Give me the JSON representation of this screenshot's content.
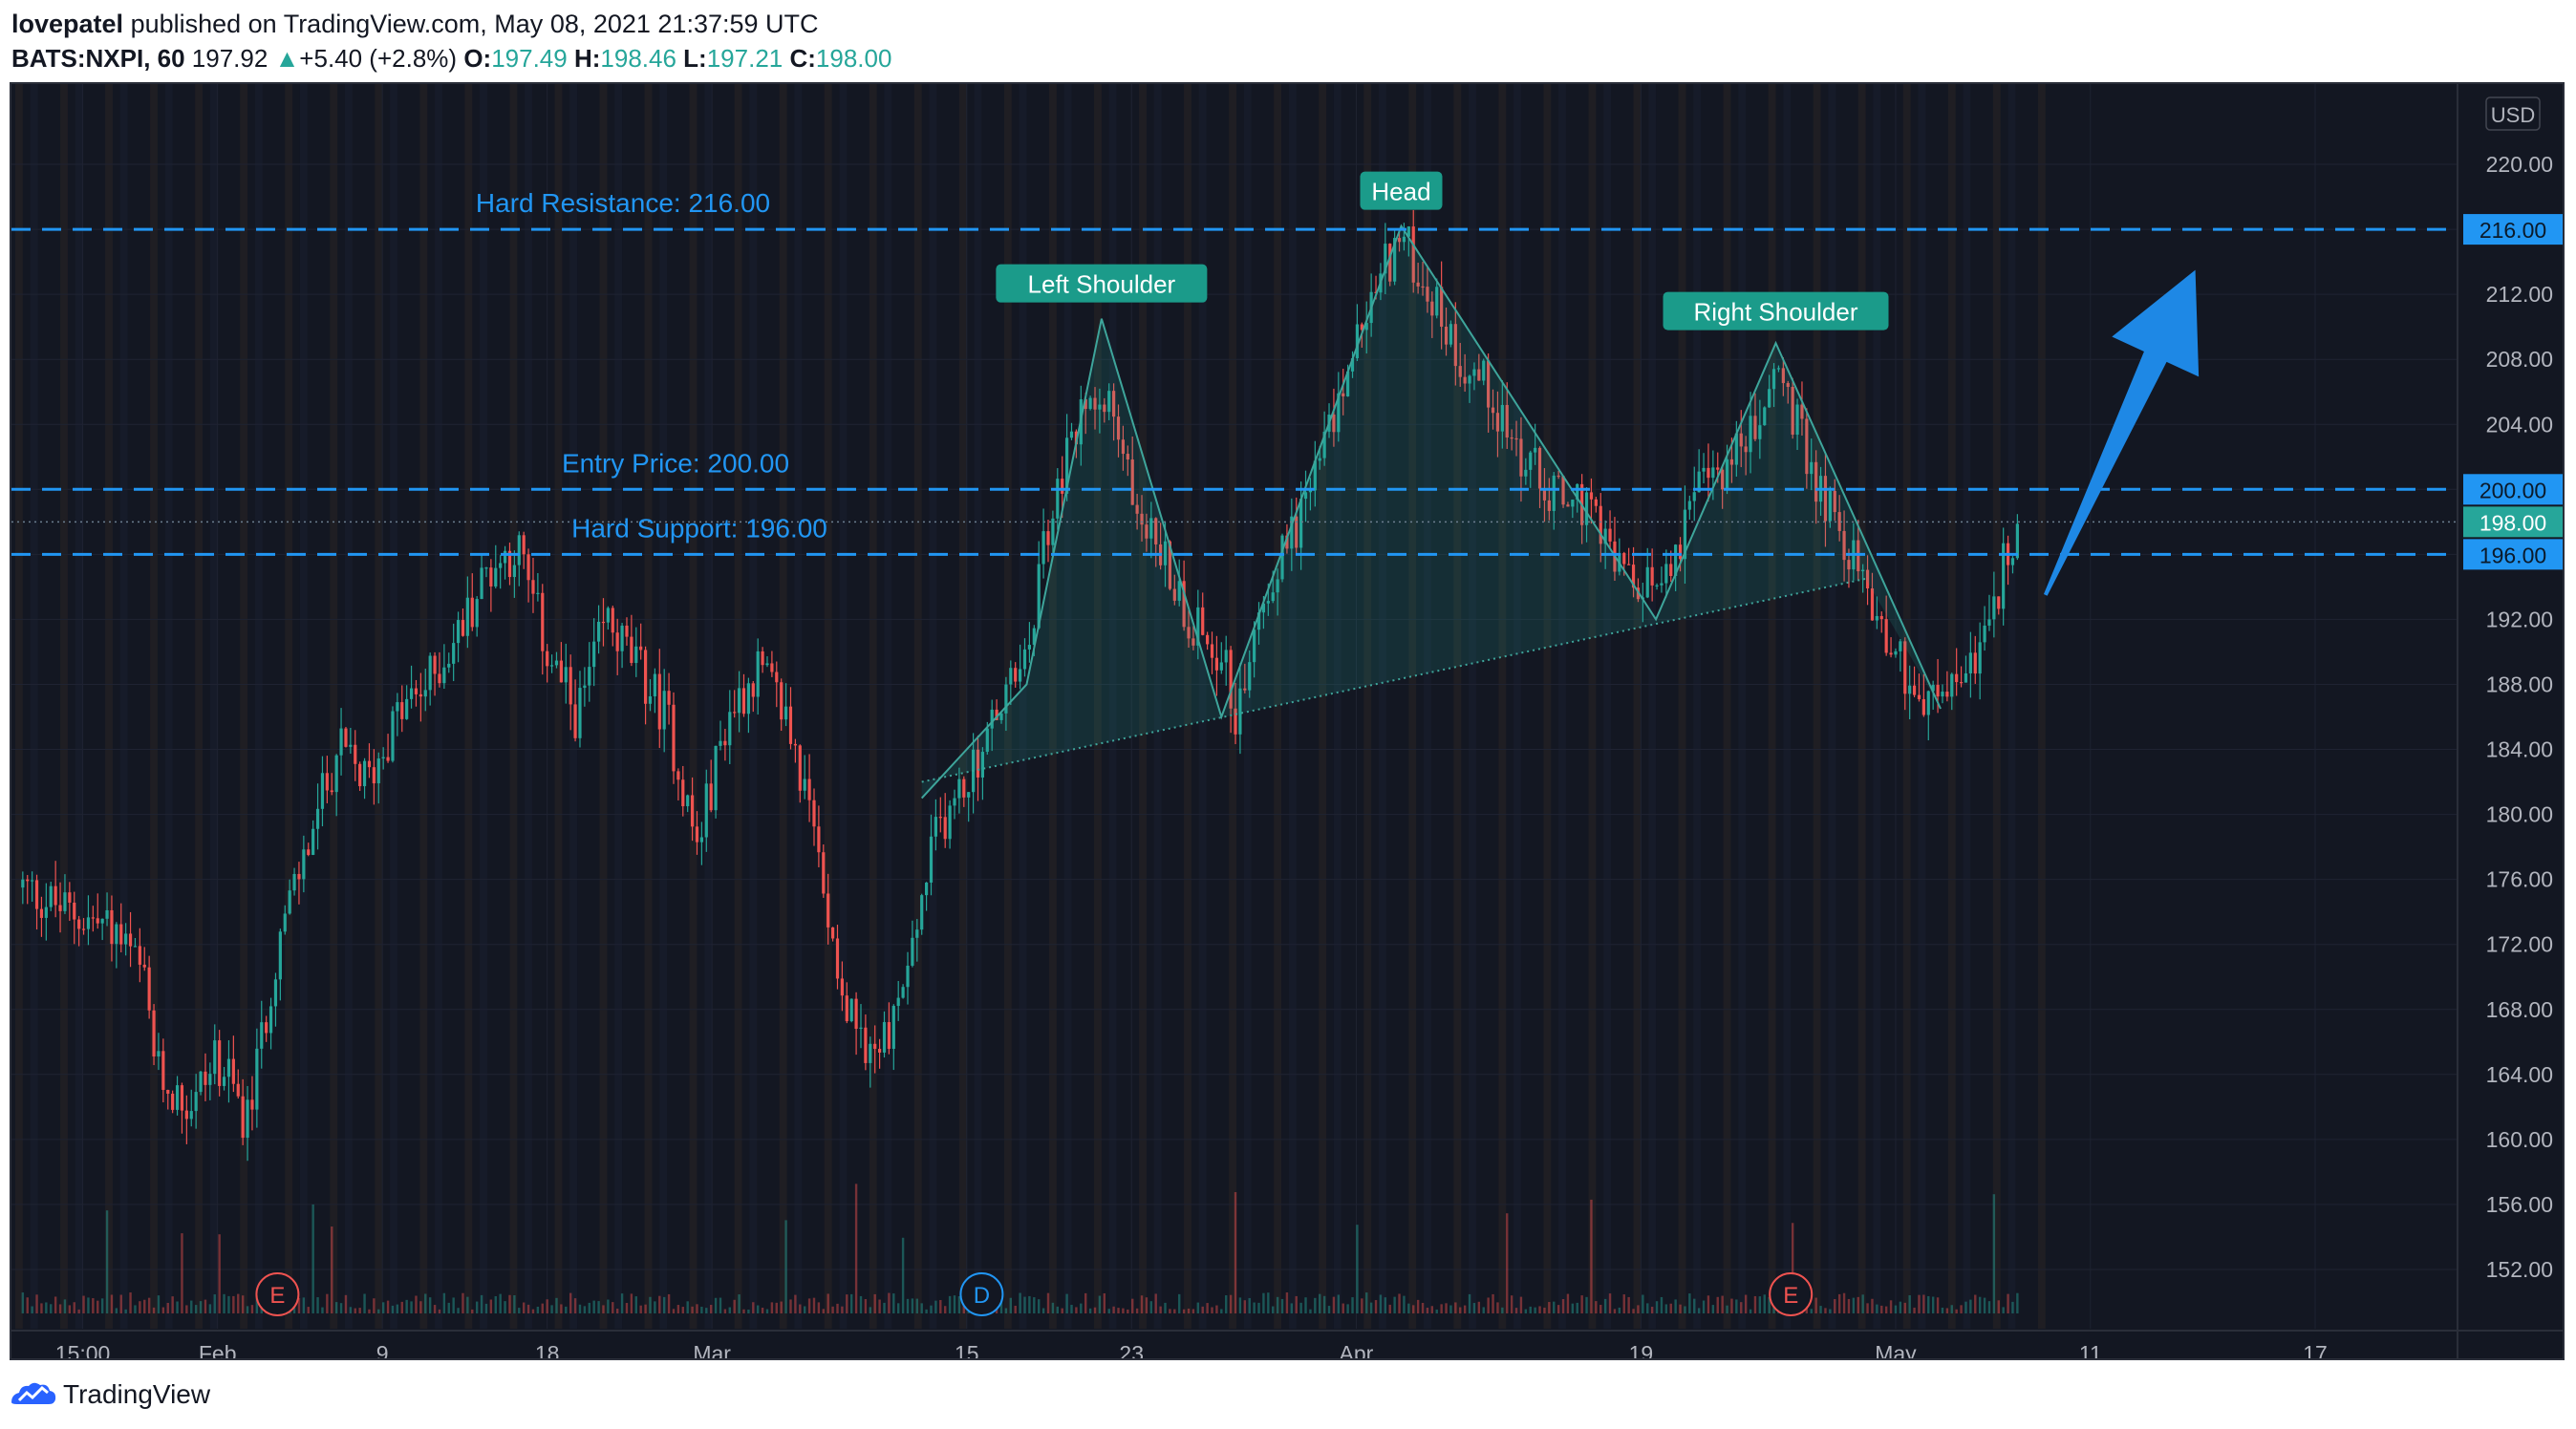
{
  "header": {
    "author": "lovepatel",
    "published_text": "published on TradingView.com, May 08, 2021 21:37:59 UTC",
    "symbol": "BATS:NXPI, 60",
    "last": "197.92",
    "change_arrow": "▲",
    "change": "+5.40 (+2.8%)",
    "o_label": "O:",
    "o_val": "197.49",
    "h_label": "H:",
    "h_val": "198.46",
    "l_label": "L:",
    "l_val": "197.21",
    "c_label": "C:",
    "c_val": "198.00"
  },
  "footer": {
    "brand": "TradingView"
  },
  "colors": {
    "background": "#131722",
    "up": "#26a69a",
    "down": "#ef5350",
    "accent_blue": "#2196f3",
    "pattern_line": "#3ea59b",
    "label_teal": "#1b9b8a",
    "grid": "#1f2332"
  },
  "chart_data": {
    "type": "candlestick",
    "currency": "USD",
    "ylim": [
      150,
      222
    ],
    "y_ticks": [
      "152.00",
      "156.00",
      "160.00",
      "164.00",
      "168.00",
      "172.00",
      "176.00",
      "180.00",
      "184.00",
      "188.00",
      "192.00",
      "196.00",
      "200.00",
      "204.00",
      "208.00",
      "212.00",
      "216.00",
      "220.00"
    ],
    "x_ticks": [
      "15:00",
      "Feb",
      "9",
      "18",
      "Mar",
      "15",
      "23",
      "Apr",
      "19",
      "May",
      "11",
      "17"
    ],
    "x_tick_index": [
      4,
      13,
      24,
      35,
      46,
      63,
      74,
      89,
      108,
      125,
      138,
      153
    ],
    "n_slots": 163,
    "close_path": [
      [
        0,
        175.5
      ],
      [
        3,
        174
      ],
      [
        6,
        173
      ],
      [
        8,
        170
      ],
      [
        9,
        164
      ],
      [
        11,
        162
      ],
      [
        13,
        165
      ],
      [
        15,
        161
      ],
      [
        17,
        172
      ],
      [
        19,
        178
      ],
      [
        21,
        184
      ],
      [
        23,
        182
      ],
      [
        25,
        186
      ],
      [
        27,
        188
      ],
      [
        29,
        191
      ],
      [
        31,
        195
      ],
      [
        33,
        196.5
      ],
      [
        35,
        190
      ],
      [
        37,
        186
      ],
      [
        39,
        192
      ],
      [
        41,
        189
      ],
      [
        43,
        186
      ],
      [
        45,
        178
      ],
      [
        47,
        186
      ],
      [
        49,
        189
      ],
      [
        51,
        186
      ],
      [
        53,
        178
      ],
      [
        55,
        168
      ],
      [
        57,
        165
      ],
      [
        59,
        170
      ],
      [
        61,
        179
      ],
      [
        63,
        182
      ],
      [
        65,
        186
      ],
      [
        66,
        188
      ],
      [
        67,
        189
      ],
      [
        68,
        196
      ],
      [
        70,
        203
      ],
      [
        72,
        207
      ],
      [
        74,
        200
      ],
      [
        76,
        196
      ],
      [
        78,
        192
      ],
      [
        80,
        190
      ],
      [
        81,
        186
      ],
      [
        83,
        194
      ],
      [
        85,
        198
      ],
      [
        87,
        203
      ],
      [
        89,
        209
      ],
      [
        91,
        214
      ],
      [
        92,
        215.5
      ],
      [
        94,
        212
      ],
      [
        96,
        208
      ],
      [
        98,
        206
      ],
      [
        100,
        202
      ],
      [
        102,
        200
      ],
      [
        104,
        199
      ],
      [
        106,
        196
      ],
      [
        108,
        193
      ],
      [
        110,
        196
      ],
      [
        112,
        200
      ],
      [
        114,
        202
      ],
      [
        116,
        204
      ],
      [
        117,
        208
      ],
      [
        119,
        202
      ],
      [
        121,
        198
      ],
      [
        123,
        194
      ],
      [
        125,
        190
      ],
      [
        127,
        186.5
      ],
      [
        129,
        188
      ],
      [
        131,
        191
      ],
      [
        133,
        198
      ]
    ],
    "series": [
      {
        "name": "Hard Resistance: 216.00",
        "type": "hline",
        "y": 216.0,
        "style": "dashed"
      },
      {
        "name": "Entry Price: 200.00",
        "type": "hline",
        "y": 200.0,
        "style": "dashed"
      },
      {
        "name": "Hard Support: 196.00",
        "type": "hline",
        "y": 196.0,
        "style": "dashed"
      },
      {
        "name": "Last price",
        "type": "hline",
        "y": 198.0,
        "style": "dotted"
      }
    ],
    "price_labels": [
      {
        "text": "216.00",
        "y": 216.0,
        "kind": "blue"
      },
      {
        "text": "200.00",
        "y": 200.0,
        "kind": "blue"
      },
      {
        "text": "198.00",
        "y": 198.0,
        "kind": "teal"
      },
      {
        "text": "196.00",
        "y": 196.0,
        "kind": "blue"
      }
    ],
    "annotations": [
      {
        "text": "Left Shoulder",
        "x": 72,
        "y": 210.5
      },
      {
        "text": "Head",
        "x": 92,
        "y": 216.2
      },
      {
        "text": "Right Shoulder",
        "x": 117,
        "y": 208.8
      }
    ],
    "pattern_points": [
      [
        60,
        181
      ],
      [
        67,
        188
      ],
      [
        72,
        210.5
      ],
      [
        80,
        186
      ],
      [
        92,
        216.2
      ],
      [
        109,
        192
      ],
      [
        117,
        209
      ],
      [
        128,
        186.5
      ]
    ],
    "neckline": [
      [
        60,
        182
      ],
      [
        123,
        194.5
      ]
    ],
    "events": [
      {
        "text": "E",
        "x": 17,
        "kind": "earnings"
      },
      {
        "text": "D",
        "x": 64,
        "kind": "dividend"
      },
      {
        "text": "E",
        "x": 118,
        "kind": "earnings"
      }
    ],
    "projection_arrow": {
      "from": [
        135,
        193.5
      ],
      "to": [
        145,
        213.5
      ]
    }
  }
}
